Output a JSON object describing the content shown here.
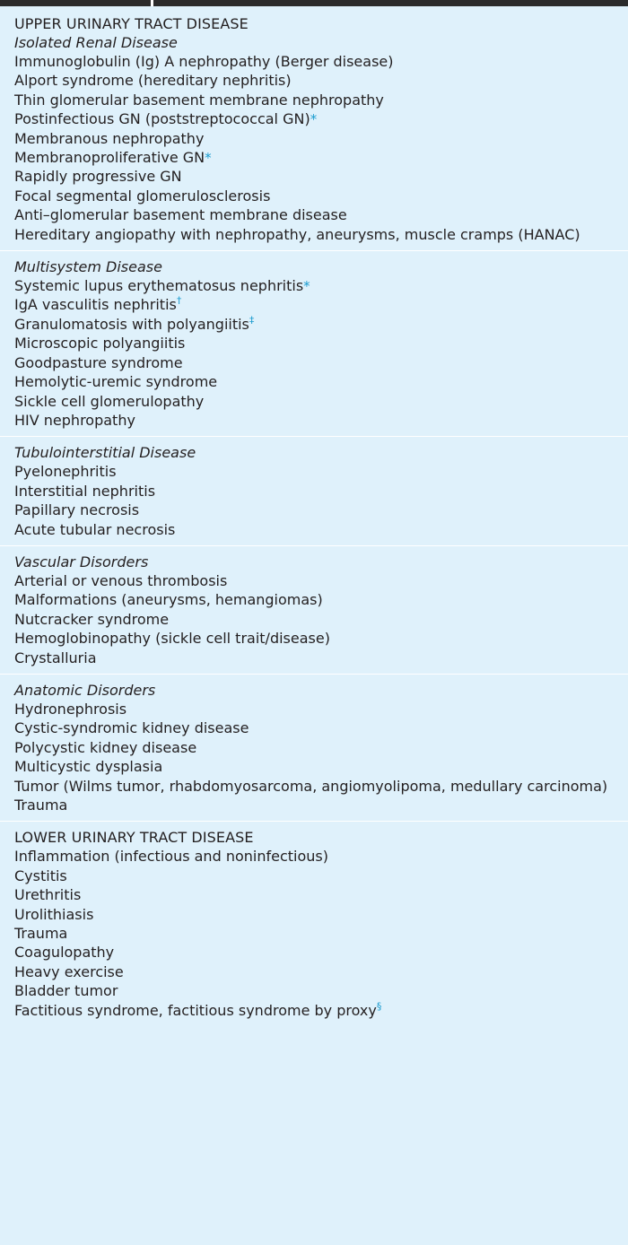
{
  "upper": {
    "heading": "UPPER URINARY TRACT DISEASE",
    "groups": [
      {
        "title": "Isolated Renal Disease",
        "items": [
          {
            "text": "Immunoglobulin (Ig) A nephropathy (Berger disease)",
            "mark": ""
          },
          {
            "text": "Alport syndrome (hereditary nephritis)",
            "mark": ""
          },
          {
            "text": "Thin glomerular basement membrane nephropathy",
            "mark": ""
          },
          {
            "text": "Postinfectious GN (poststreptococcal GN)",
            "mark": "*"
          },
          {
            "text": "Membranous nephropathy",
            "mark": ""
          },
          {
            "text": "Membranoproliferative GN",
            "mark": "*"
          },
          {
            "text": "Rapidly progressive GN",
            "mark": ""
          },
          {
            "text": "Focal segmental glomerulosclerosis",
            "mark": ""
          },
          {
            "text": "Anti–glomerular basement membrane disease",
            "mark": ""
          },
          {
            "text": "Hereditary angiopathy with nephropathy, aneurysms, muscle cramps (HANAC)",
            "mark": ""
          }
        ]
      },
      {
        "title": "Multisystem Disease",
        "items": [
          {
            "text": "Systemic lupus erythematosus nephritis",
            "mark": "*"
          },
          {
            "text": "IgA vasculitis nephritis",
            "mark": "†"
          },
          {
            "text": "Granulomatosis with polyangiitis",
            "mark": "‡"
          },
          {
            "text": "Microscopic polyangiitis",
            "mark": ""
          },
          {
            "text": "Goodpasture syndrome",
            "mark": ""
          },
          {
            "text": "Hemolytic-uremic syndrome",
            "mark": ""
          },
          {
            "text": "Sickle cell glomerulopathy",
            "mark": ""
          },
          {
            "text": "HIV nephropathy",
            "mark": ""
          }
        ]
      },
      {
        "title": "Tubulointerstitial Disease",
        "items": [
          {
            "text": "Pyelonephritis",
            "mark": ""
          },
          {
            "text": "Interstitial nephritis",
            "mark": ""
          },
          {
            "text": "Papillary necrosis",
            "mark": ""
          },
          {
            "text": "Acute tubular necrosis",
            "mark": ""
          }
        ]
      },
      {
        "title": "Vascular Disorders",
        "items": [
          {
            "text": "Arterial or venous thrombosis",
            "mark": ""
          },
          {
            "text": "Malformations (aneurysms, hemangiomas)",
            "mark": ""
          },
          {
            "text": "Nutcracker syndrome",
            "mark": ""
          },
          {
            "text": "Hemoglobinopathy (sickle cell trait/disease)",
            "mark": ""
          },
          {
            "text": "Crystalluria",
            "mark": ""
          }
        ]
      },
      {
        "title": "Anatomic Disorders",
        "items": [
          {
            "text": "Hydronephrosis",
            "mark": ""
          },
          {
            "text": "Cystic-syndromic kidney disease",
            "mark": ""
          },
          {
            "text": "Polycystic kidney disease",
            "mark": ""
          },
          {
            "text": "Multicystic dysplasia",
            "mark": ""
          },
          {
            "text": "Tumor (Wilms tumor, rhabdomyosarcoma, angiomyolipoma, medullary carcinoma)",
            "mark": ""
          },
          {
            "text": "Trauma",
            "mark": ""
          }
        ]
      }
    ]
  },
  "lower": {
    "heading": "LOWER URINARY TRACT DISEASE",
    "items": [
      {
        "text": "Inflammation (infectious and noninfectious)",
        "mark": ""
      },
      {
        "text": "Cystitis",
        "mark": ""
      },
      {
        "text": "Urethritis",
        "mark": ""
      },
      {
        "text": "Urolithiasis",
        "mark": ""
      },
      {
        "text": "Trauma",
        "mark": ""
      },
      {
        "text": "Coagulopathy",
        "mark": ""
      },
      {
        "text": "Heavy exercise",
        "mark": ""
      },
      {
        "text": "Bladder tumor",
        "mark": ""
      },
      {
        "text": "Factitious syndrome, factitious syndrome by proxy",
        "mark": "§"
      }
    ]
  },
  "colors": {
    "background": "#dff1fb",
    "footnote_mark": "#1b9ccf",
    "top_rule": "#2b2b2b"
  }
}
